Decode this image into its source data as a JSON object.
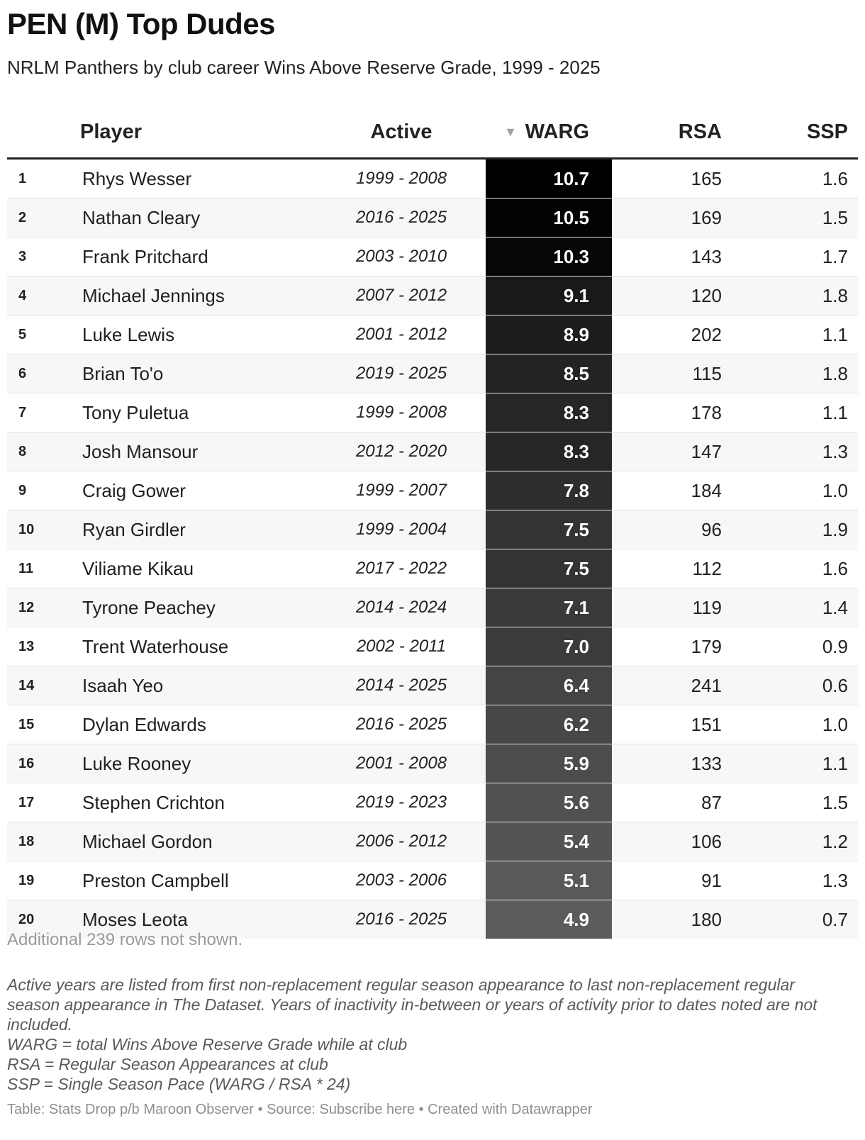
{
  "title": "PEN (M) Top Dudes",
  "subtitle": "NRLM Panthers by club career Wins Above Reserve Grade, 1999 - 2025",
  "chart_data": {
    "type": "table",
    "columns": [
      "",
      "Player",
      "Active",
      "WARG",
      "RSA",
      "SSP"
    ],
    "sorted_by": "WARG",
    "sort_indicator": "▼",
    "rows": [
      {
        "rank": "1",
        "player": "Rhys Wesser",
        "active": "1999 - 2008",
        "warg": 10.7,
        "warg_text": "10.7",
        "rsa": "165",
        "ssp": "1.6"
      },
      {
        "rank": "2",
        "player": "Nathan Cleary",
        "active": "2016 - 2025",
        "warg": 10.5,
        "warg_text": "10.5",
        "rsa": "169",
        "ssp": "1.5"
      },
      {
        "rank": "3",
        "player": "Frank Pritchard",
        "active": "2003 - 2010",
        "warg": 10.3,
        "warg_text": "10.3",
        "rsa": "143",
        "ssp": "1.7"
      },
      {
        "rank": "4",
        "player": "Michael Jennings",
        "active": "2007 - 2012",
        "warg": 9.1,
        "warg_text": "9.1",
        "rsa": "120",
        "ssp": "1.8"
      },
      {
        "rank": "5",
        "player": "Luke Lewis",
        "active": "2001 - 2012",
        "warg": 8.9,
        "warg_text": "8.9",
        "rsa": "202",
        "ssp": "1.1"
      },
      {
        "rank": "6",
        "player": "Brian To'o",
        "active": "2019 - 2025",
        "warg": 8.5,
        "warg_text": "8.5",
        "rsa": "115",
        "ssp": "1.8"
      },
      {
        "rank": "7",
        "player": "Tony Puletua",
        "active": "1999 - 2008",
        "warg": 8.3,
        "warg_text": "8.3",
        "rsa": "178",
        "ssp": "1.1"
      },
      {
        "rank": "8",
        "player": "Josh Mansour",
        "active": "2012 - 2020",
        "warg": 8.3,
        "warg_text": "8.3",
        "rsa": "147",
        "ssp": "1.3"
      },
      {
        "rank": "9",
        "player": "Craig Gower",
        "active": "1999 - 2007",
        "warg": 7.8,
        "warg_text": "7.8",
        "rsa": "184",
        "ssp": "1.0"
      },
      {
        "rank": "10",
        "player": "Ryan Girdler",
        "active": "1999 - 2004",
        "warg": 7.5,
        "warg_text": "7.5",
        "rsa": "96",
        "ssp": "1.9"
      },
      {
        "rank": "11",
        "player": "Viliame Kikau",
        "active": "2017 - 2022",
        "warg": 7.5,
        "warg_text": "7.5",
        "rsa": "112",
        "ssp": "1.6"
      },
      {
        "rank": "12",
        "player": "Tyrone Peachey",
        "active": "2014 - 2024",
        "warg": 7.1,
        "warg_text": "7.1",
        "rsa": "119",
        "ssp": "1.4"
      },
      {
        "rank": "13",
        "player": "Trent Waterhouse",
        "active": "2002 - 2011",
        "warg": 7.0,
        "warg_text": "7.0",
        "rsa": "179",
        "ssp": "0.9"
      },
      {
        "rank": "14",
        "player": "Isaah Yeo",
        "active": "2014 - 2025",
        "warg": 6.4,
        "warg_text": "6.4",
        "rsa": "241",
        "ssp": "0.6"
      },
      {
        "rank": "15",
        "player": "Dylan Edwards",
        "active": "2016 - 2025",
        "warg": 6.2,
        "warg_text": "6.2",
        "rsa": "151",
        "ssp": "1.0"
      },
      {
        "rank": "16",
        "player": "Luke Rooney",
        "active": "2001 - 2008",
        "warg": 5.9,
        "warg_text": "5.9",
        "rsa": "133",
        "ssp": "1.1"
      },
      {
        "rank": "17",
        "player": "Stephen Crichton",
        "active": "2019 - 2023",
        "warg": 5.6,
        "warg_text": "5.6",
        "rsa": "87",
        "ssp": "1.5"
      },
      {
        "rank": "18",
        "player": "Michael Gordon",
        "active": "2006 - 2012",
        "warg": 5.4,
        "warg_text": "5.4",
        "rsa": "106",
        "ssp": "1.2"
      },
      {
        "rank": "19",
        "player": "Preston Campbell",
        "active": "2003 - 2006",
        "warg": 5.1,
        "warg_text": "5.1",
        "rsa": "91",
        "ssp": "1.3"
      },
      {
        "rank": "20",
        "player": "Moses Leota",
        "active": "2016 - 2025",
        "warg": 4.9,
        "warg_text": "4.9",
        "rsa": "180",
        "ssp": "0.7"
      }
    ],
    "warg_color_scale": {
      "low": "#5c5c5c",
      "high": "#000000",
      "min": 4.9,
      "max": 10.7
    }
  },
  "rows_not_shown": "Additional 239 rows not shown.",
  "notes": [
    "Active years are listed from first non-replacement regular season appearance to last non-replacement regular season appearance in The Dataset. Years of inactivity in-between or years of activity prior to dates noted are not included.",
    "WARG = total Wins Above Reserve Grade while at club",
    "RSA = Regular Season Appearances at club",
    "SSP = Single Season Pace (WARG / RSA * 24)"
  ],
  "credits": "Table: Stats Drop p/b Maroon Observer • Source: Subscribe here • Created with Datawrapper"
}
